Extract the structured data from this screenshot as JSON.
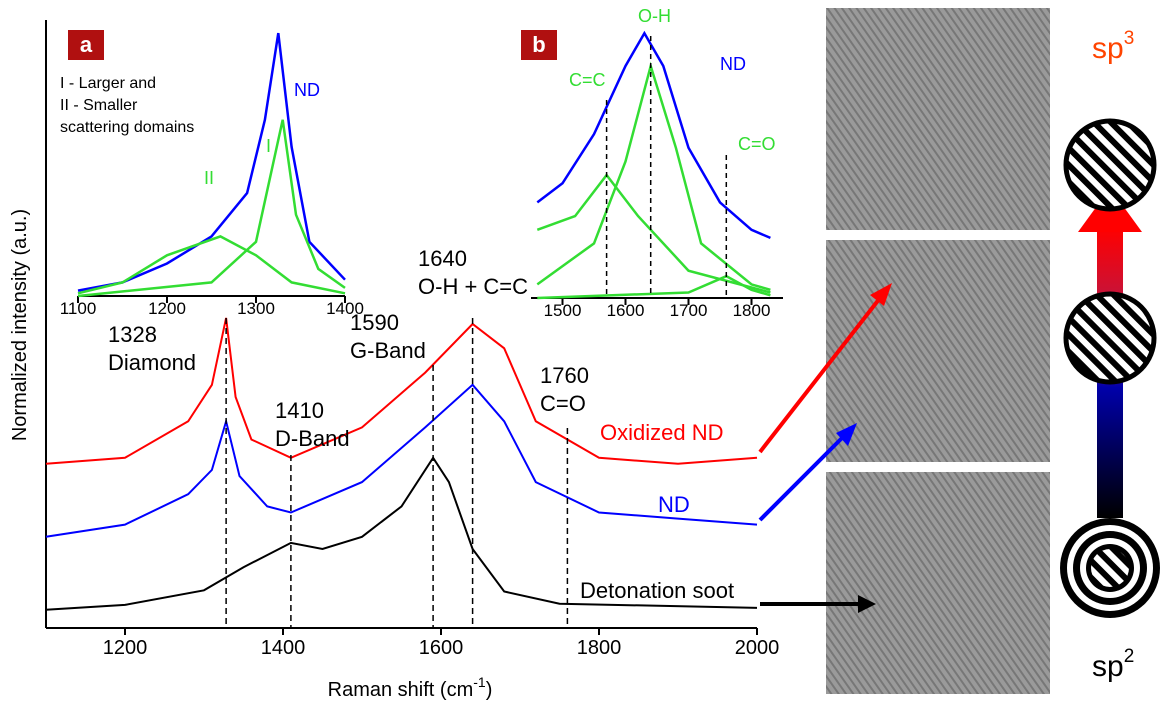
{
  "chart_data": [
    {
      "type": "line",
      "x_label": [
        "Raman shift (cm",
        "-1",
        ")"
      ],
      "y_label": "Normalized intensity (a.u.)",
      "xlim": [
        1100,
        2000
      ],
      "xticks": [
        1200,
        1400,
        1600,
        1800,
        2000
      ],
      "ylim": [
        0,
        1
      ],
      "series": [
        {
          "name": "Oxidized ND",
          "color": "#ff0000",
          "x": [
            1100,
            1200,
            1280,
            1310,
            1328,
            1340,
            1360,
            1410,
            1500,
            1580,
            1640,
            1680,
            1720,
            1800,
            1900,
            2000
          ],
          "values": [
            0.27,
            0.28,
            0.34,
            0.4,
            0.51,
            0.38,
            0.31,
            0.28,
            0.33,
            0.42,
            0.5,
            0.46,
            0.34,
            0.28,
            0.27,
            0.28
          ]
        },
        {
          "name": "ND",
          "color": "#0000ff",
          "x": [
            1100,
            1200,
            1280,
            1310,
            1328,
            1345,
            1380,
            1410,
            1500,
            1580,
            1640,
            1680,
            1720,
            1800,
            1900,
            2000
          ],
          "values": [
            0.15,
            0.17,
            0.22,
            0.26,
            0.34,
            0.25,
            0.2,
            0.19,
            0.24,
            0.33,
            0.4,
            0.34,
            0.24,
            0.19,
            0.18,
            0.17
          ]
        },
        {
          "name": "Detonation soot",
          "color": "#000000",
          "x": [
            1100,
            1200,
            1300,
            1350,
            1410,
            1450,
            1500,
            1550,
            1590,
            1610,
            1640,
            1680,
            1750,
            2000
          ],
          "values": [
            0.03,
            0.038,
            0.062,
            0.1,
            0.14,
            0.13,
            0.15,
            0.2,
            0.28,
            0.24,
            0.13,
            0.06,
            0.04,
            0.033
          ]
        }
      ],
      "peaks": [
        {
          "x": 1328,
          "label": "Diamond"
        },
        {
          "x": 1410,
          "label": "D-Band"
        },
        {
          "x": 1590,
          "label": "G-Band"
        },
        {
          "x": 1640,
          "label": "O-H + C=C"
        },
        {
          "x": 1760,
          "label": "C=O"
        }
      ]
    },
    {
      "type": "line",
      "panel": "a",
      "label": "ND",
      "annotation": [
        "I - Larger and",
        "II - Smaller",
        "scattering domains"
      ],
      "xlim": [
        1100,
        1400
      ],
      "xticks": [
        1100,
        1200,
        1300,
        1400
      ],
      "ylim": [
        0,
        1
      ],
      "series": [
        {
          "name": "ND",
          "color": "#0000ff",
          "x": [
            1100,
            1150,
            1200,
            1250,
            1290,
            1310,
            1325,
            1340,
            1360,
            1400
          ],
          "values": [
            0.02,
            0.05,
            0.12,
            0.22,
            0.38,
            0.65,
            0.97,
            0.55,
            0.2,
            0.06
          ]
        },
        {
          "name": "I",
          "color": "#33dd33",
          "x": [
            1100,
            1250,
            1300,
            1330,
            1345,
            1370,
            1400
          ],
          "values": [
            0,
            0.05,
            0.2,
            0.65,
            0.3,
            0.1,
            0.03
          ]
        },
        {
          "name": "II",
          "color": "#33dd33",
          "x": [
            1100,
            1150,
            1200,
            1260,
            1300,
            1340,
            1400
          ],
          "values": [
            0.01,
            0.05,
            0.15,
            0.22,
            0.15,
            0.05,
            0.01
          ]
        }
      ]
    },
    {
      "type": "line",
      "panel": "b",
      "label": "ND",
      "markers": [
        1570,
        1640,
        1760
      ],
      "xlim": [
        1450,
        1850
      ],
      "xticks": [
        1500,
        1600,
        1700,
        1800
      ],
      "ylim": [
        0,
        1
      ],
      "series": [
        {
          "name": "ND",
          "color": "#0000ff",
          "x": [
            1460,
            1500,
            1550,
            1600,
            1630,
            1660,
            1700,
            1750,
            1800,
            1830
          ],
          "values": [
            0.35,
            0.42,
            0.6,
            0.85,
            0.97,
            0.85,
            0.55,
            0.35,
            0.25,
            0.22
          ]
        },
        {
          "name": "O-H",
          "color": "#33dd33",
          "x": [
            1460,
            1550,
            1600,
            1640,
            1680,
            1720,
            1800,
            1830
          ],
          "values": [
            0.05,
            0.2,
            0.5,
            0.85,
            0.55,
            0.2,
            0.05,
            0.03
          ]
        },
        {
          "name": "C=C",
          "color": "#33dd33",
          "x": [
            1460,
            1520,
            1570,
            1620,
            1700,
            1830
          ],
          "values": [
            0.25,
            0.3,
            0.45,
            0.3,
            0.1,
            0.02
          ]
        },
        {
          "name": "C=O",
          "color": "#33dd33",
          "x": [
            1460,
            1700,
            1760,
            1800,
            1830
          ],
          "values": [
            0,
            0.02,
            0.08,
            0.03,
            0.01
          ]
        }
      ]
    }
  ],
  "schematic": {
    "top": "sp",
    "top_sup": "3",
    "bottom": "sp",
    "bottom_sup": "2"
  }
}
